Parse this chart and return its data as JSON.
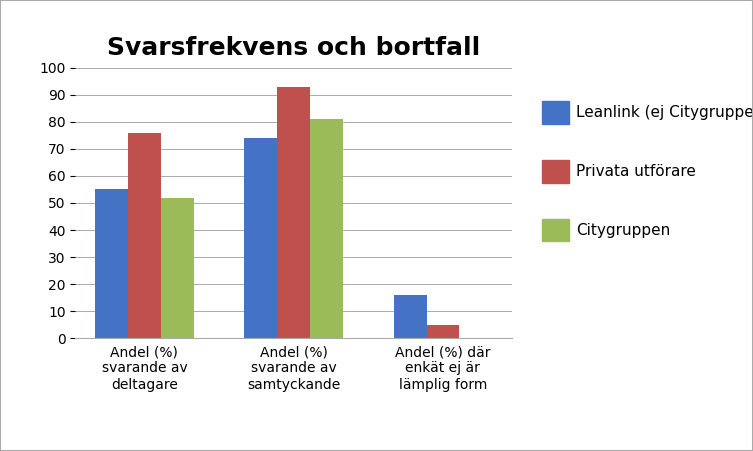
{
  "title": "Svarsfrekvens och bortfall",
  "categories": [
    "Andel (%)\nsvarande av\ndeltagare",
    "Andel (%)\nsvarande av\nsamtyckande",
    "Andel (%) där\nenkät ej är\nlämplig form"
  ],
  "series": [
    {
      "name": "Leanlink (ej Citygruppen)",
      "color": "#4472C4",
      "values": [
        55,
        74,
        16
      ]
    },
    {
      "name": "Privata utförare",
      "color": "#C0504D",
      "values": [
        76,
        93,
        5
      ]
    },
    {
      "name": "Citygruppen",
      "color": "#9BBB59",
      "values": [
        52,
        81,
        0
      ]
    }
  ],
  "ylim": [
    0,
    100
  ],
  "yticks": [
    0,
    10,
    20,
    30,
    40,
    50,
    60,
    70,
    80,
    90,
    100
  ],
  "background_color": "#ffffff",
  "outer_background": "#d9d9d9",
  "title_fontsize": 18,
  "legend_fontsize": 11,
  "tick_fontsize": 10,
  "bar_width": 0.22
}
